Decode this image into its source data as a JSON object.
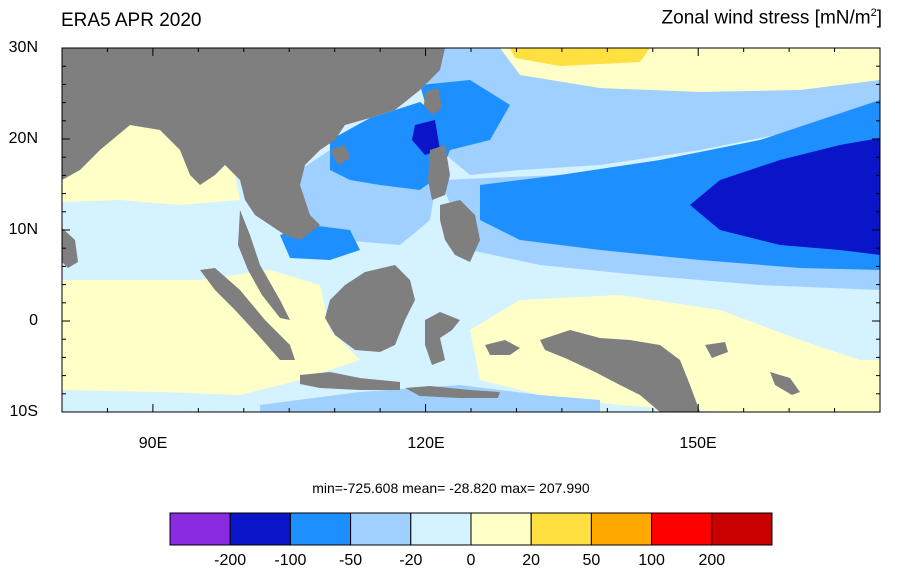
{
  "title_left": "ERA5 APR 2020",
  "title_right_text": "Zonal wind stress [mN/m",
  "title_right_sup": "2",
  "title_right_end": "]",
  "lat_labels": [
    "30N",
    "20N",
    "10N",
    "0",
    "10S"
  ],
  "lon_labels": [
    "90E",
    "120E",
    "150E"
  ],
  "stats": "min=-725.608  mean= -28.820  max= 207.990",
  "colorbar": {
    "colors": [
      "#8a2be2",
      "#0a14c8",
      "#1e8fff",
      "#a0d0ff",
      "#d4f2ff",
      "#ffffc8",
      "#ffe040",
      "#ffa800",
      "#ff0000",
      "#c80000"
    ],
    "labels": [
      "-200",
      "-100",
      "-50",
      "-20",
      "0",
      "20",
      "50",
      "100",
      "200"
    ]
  },
  "map_colors": {
    "land": "#7f7f7f",
    "c_minus100": "#0a14c8",
    "c_minus50": "#1e8fff",
    "c_minus20": "#a0d0ff",
    "c_minus0": "#d4f2ff",
    "c_plus20": "#ffffc8",
    "c_plus50": "#ffe040",
    "c_plus100": "#ffa800"
  }
}
